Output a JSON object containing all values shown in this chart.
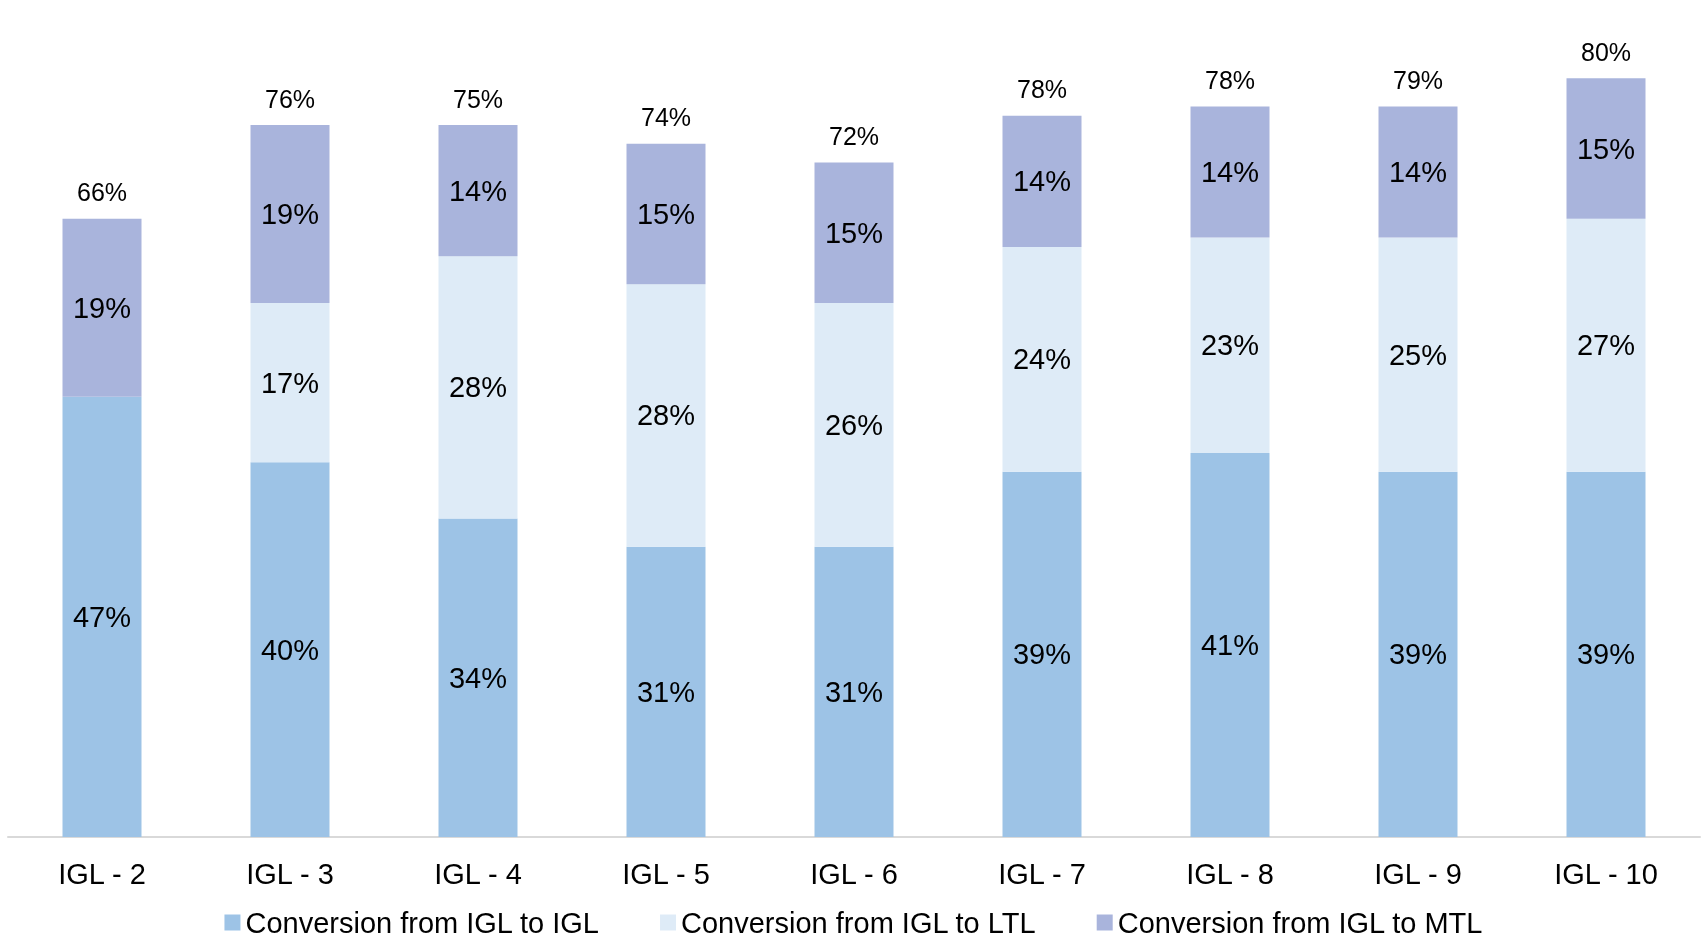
{
  "chart_data": {
    "type": "bar",
    "stacked": true,
    "legend": "bottom",
    "grid": false,
    "tick_labels": "x",
    "categories": [
      "IGL - 2",
      "IGL - 3",
      "IGL - 4",
      "IGL - 5",
      "IGL - 6",
      "IGL - 7",
      "IGL - 8",
      "IGL - 9",
      "IGL - 10"
    ],
    "series": [
      {
        "name": "Conversion from IGL to IGL",
        "color": "#9dc3e6",
        "values": [
          47,
          40,
          34,
          31,
          31,
          39,
          41,
          39,
          39
        ],
        "value_labels": [
          "47%",
          "40%",
          "34%",
          "31%",
          "31%",
          "39%",
          "41%",
          "39%",
          "39%"
        ]
      },
      {
        "name": "Conversion from IGL to LTL",
        "color": "#deebf7",
        "values": [
          null,
          17,
          28,
          28,
          26,
          24,
          23,
          25,
          27
        ],
        "value_labels": [
          null,
          "17%",
          "28%",
          "28%",
          "26%",
          "24%",
          "23%",
          "25%",
          "27%"
        ]
      },
      {
        "name": "Conversion from IGL to MTL",
        "color": "#a9b4dc",
        "values": [
          19,
          19,
          14,
          15,
          15,
          14,
          14,
          14,
          15
        ],
        "value_labels": [
          "19%",
          "19%",
          "14%",
          "15%",
          "15%",
          "14%",
          "14%",
          "14%",
          "15%"
        ]
      }
    ],
    "totals": [
      "66%",
      "76%",
      "75%",
      "74%",
      "72%",
      "78%",
      "78%",
      "79%",
      "80%"
    ]
  }
}
